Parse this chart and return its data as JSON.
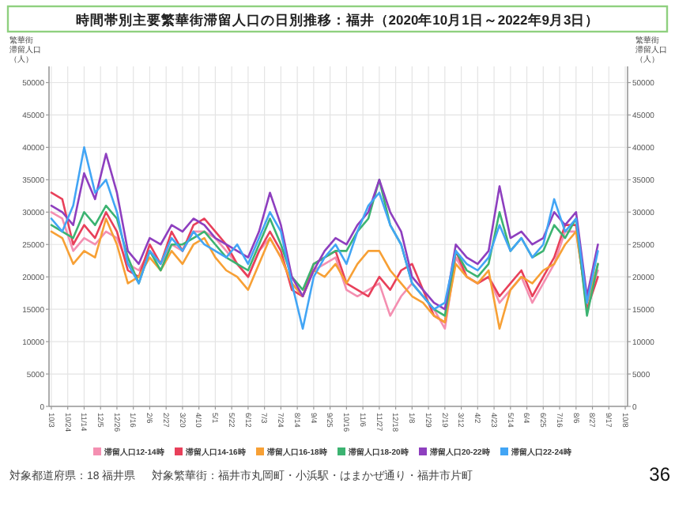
{
  "chart_data": {
    "type": "line",
    "title": "時間帯別主要繁華街滞留人口の日別推移：福井（2020年10月1日～2022年9月3日）",
    "ylabel": "繁華街滞留人口（人）",
    "y2label": "繁華街滞留人口（人）",
    "x": [
      "2020-10-03",
      "2020-10-17",
      "2020-10-31",
      "2020-11-14",
      "2020-11-28",
      "2020-12-12",
      "2020-12-26",
      "2021-01-09",
      "2021-01-23",
      "2021-02-06",
      "2021-02-20",
      "2021-03-06",
      "2021-03-20",
      "2021-04-03",
      "2021-04-17",
      "2021-05-01",
      "2021-05-15",
      "2021-05-29",
      "2021-06-12",
      "2021-06-26",
      "2021-07-10",
      "2021-07-24",
      "2021-08-07",
      "2021-08-21",
      "2021-09-04",
      "2021-09-18",
      "2021-10-02",
      "2021-10-16",
      "2021-10-30",
      "2021-11-13",
      "2021-11-27",
      "2021-12-11",
      "2021-12-25",
      "2022-01-08",
      "2022-01-22",
      "2022-02-05",
      "2022-02-19",
      "2022-03-05",
      "2022-03-19",
      "2022-04-02",
      "2022-04-16",
      "2022-04-30",
      "2022-05-14",
      "2022-05-28",
      "2022-06-11",
      "2022-06-25",
      "2022-07-09",
      "2022-07-23",
      "2022-08-06",
      "2022-08-20",
      "2022-09-03"
    ],
    "series": [
      {
        "name": "滞留人口12-14時",
        "color": "#f48fb1",
        "values": [
          30000,
          29000,
          24000,
          26000,
          25000,
          27000,
          26000,
          22000,
          21000,
          24000,
          22000,
          25000,
          24000,
          27000,
          27000,
          26000,
          24000,
          22000,
          20000,
          24000,
          26000,
          23000,
          19000,
          17000,
          21000,
          22000,
          23000,
          18000,
          17000,
          18000,
          19000,
          14000,
          17000,
          19000,
          17000,
          15000,
          12000,
          23000,
          20000,
          19000,
          20000,
          16000,
          18000,
          20000,
          16000,
          19000,
          22000,
          27000,
          27000,
          16000,
          21000
        ]
      },
      {
        "name": "滞留人口14-16時",
        "color": "#e8405a",
        "values": [
          33000,
          32000,
          25000,
          28000,
          26000,
          30000,
          27000,
          21000,
          20000,
          25000,
          22000,
          27000,
          24000,
          28000,
          29000,
          27000,
          25000,
          22000,
          20000,
          24000,
          27000,
          24000,
          18000,
          17000,
          22000,
          23000,
          24000,
          19000,
          18000,
          17000,
          20000,
          18000,
          21000,
          22000,
          18000,
          14000,
          13000,
          24000,
          20000,
          19000,
          20000,
          17000,
          19000,
          21000,
          17000,
          20000,
          23000,
          28000,
          28000,
          15000,
          20000
        ]
      },
      {
        "name": "滞留人口16-18時",
        "color": "#f7a035",
        "values": [
          27000,
          26000,
          22000,
          24000,
          23000,
          29000,
          25000,
          19000,
          20000,
          23000,
          21000,
          24000,
          22000,
          25000,
          26000,
          23000,
          21000,
          20000,
          18000,
          22000,
          26000,
          23000,
          19000,
          17000,
          21000,
          20000,
          22000,
          19000,
          22000,
          24000,
          24000,
          21000,
          19000,
          17000,
          16000,
          14000,
          13000,
          22000,
          20000,
          19000,
          21000,
          12000,
          18000,
          20000,
          19000,
          21000,
          22000,
          25000,
          27000,
          16000,
          22000
        ]
      },
      {
        "name": "滞留人口18-20時",
        "color": "#3cb371",
        "values": [
          28000,
          27000,
          26000,
          30000,
          28000,
          31000,
          29000,
          23000,
          19000,
          24000,
          21000,
          25000,
          25000,
          26000,
          27000,
          25000,
          23000,
          22000,
          21000,
          25000,
          29000,
          25000,
          20000,
          18000,
          22000,
          23000,
          24000,
          24000,
          27000,
          29000,
          35000,
          28000,
          25000,
          19000,
          17000,
          15000,
          14000,
          24000,
          21000,
          20000,
          22000,
          30000,
          24000,
          26000,
          23000,
          24000,
          28000,
          26000,
          29000,
          14000,
          22000
        ]
      },
      {
        "name": "滞留人口20-22時",
        "color": "#8e3fbf",
        "values": [
          31000,
          30000,
          28000,
          36000,
          32000,
          39000,
          33000,
          24000,
          22000,
          26000,
          25000,
          28000,
          27000,
          29000,
          28000,
          26000,
          25000,
          24000,
          23000,
          27000,
          33000,
          28000,
          20000,
          17000,
          21000,
          24000,
          26000,
          25000,
          28000,
          30000,
          35000,
          30000,
          27000,
          20000,
          18000,
          16000,
          15000,
          25000,
          23000,
          22000,
          24000,
          34000,
          26000,
          27000,
          25000,
          26000,
          30000,
          28000,
          30000,
          17000,
          25000
        ]
      },
      {
        "name": "滞留人口22-24時",
        "color": "#42a5f5",
        "values": [
          29000,
          27000,
          31000,
          40000,
          33000,
          35000,
          30000,
          22000,
          19000,
          24000,
          22000,
          26000,
          24000,
          27000,
          25000,
          24000,
          23000,
          25000,
          22000,
          26000,
          30000,
          27000,
          19000,
          12000,
          20000,
          23000,
          25000,
          22000,
          27000,
          31000,
          33000,
          28000,
          25000,
          19000,
          17000,
          15000,
          16000,
          24000,
          22000,
          21000,
          23000,
          28000,
          24000,
          26000,
          23000,
          25000,
          32000,
          27000,
          29000,
          16000,
          24000
        ]
      }
    ],
    "xlim": [
      "2020-09-30",
      "2022-10-11"
    ],
    "xticks": [
      {
        "value": "2020-10-03",
        "label": "10/3"
      },
      {
        "value": "2020-10-24",
        "label": "10/24"
      },
      {
        "value": "2020-11-14",
        "label": "11/14"
      },
      {
        "value": "2020-12-05",
        "label": "12/5"
      },
      {
        "value": "2020-12-26",
        "label": "12/26"
      },
      {
        "value": "2021-01-16",
        "label": "1/16"
      },
      {
        "value": "2021-02-06",
        "label": "2/6"
      },
      {
        "value": "2021-02-27",
        "label": "2/27"
      },
      {
        "value": "2021-03-20",
        "label": "3/20"
      },
      {
        "value": "2021-04-10",
        "label": "4/10"
      },
      {
        "value": "2021-05-01",
        "label": "5/1"
      },
      {
        "value": "2021-05-22",
        "label": "5/22"
      },
      {
        "value": "2021-06-12",
        "label": "6/12"
      },
      {
        "value": "2021-07-03",
        "label": "7/3"
      },
      {
        "value": "2021-07-24",
        "label": "7/24"
      },
      {
        "value": "2021-08-14",
        "label": "8/14"
      },
      {
        "value": "2021-09-04",
        "label": "9/4"
      },
      {
        "value": "2021-09-25",
        "label": "9/25"
      },
      {
        "value": "2021-10-16",
        "label": "10/16"
      },
      {
        "value": "2021-11-06",
        "label": "11/6"
      },
      {
        "value": "2021-11-27",
        "label": "11/27"
      },
      {
        "value": "2021-12-18",
        "label": "12/18"
      },
      {
        "value": "2022-01-08",
        "label": "1/8"
      },
      {
        "value": "2022-01-29",
        "label": "1/29"
      },
      {
        "value": "2022-02-19",
        "label": "2/19"
      },
      {
        "value": "2022-03-12",
        "label": "3/12"
      },
      {
        "value": "2022-04-02",
        "label": "4/2"
      },
      {
        "value": "2022-04-23",
        "label": "4/23"
      },
      {
        "value": "2022-05-14",
        "label": "5/14"
      },
      {
        "value": "2022-06-04",
        "label": "6/4"
      },
      {
        "value": "2022-06-25",
        "label": "6/25"
      },
      {
        "value": "2022-07-16",
        "label": "7/16"
      },
      {
        "value": "2022-08-06",
        "label": "8/6"
      },
      {
        "value": "2022-08-27",
        "label": "8/27"
      },
      {
        "value": "2022-09-17",
        "label": "9/17"
      },
      {
        "value": "2022-10-08",
        "label": "10/8"
      }
    ],
    "ylim": [
      0,
      52500
    ],
    "yticks": [
      0,
      5000,
      10000,
      15000,
      20000,
      25000,
      30000,
      35000,
      40000,
      45000,
      50000
    ],
    "y2lim": [
      0,
      52500
    ],
    "y2ticks": [
      0,
      5000,
      10000,
      15000,
      20000,
      25000,
      30000,
      35000,
      40000,
      45000,
      50000
    ],
    "grid": true,
    "legend": "bottom",
    "annotations": [
      "対象都道府県：18 福井県",
      "対象繁華街：福井市丸岡町・小浜駅・はまかぜ通り・福井市片町",
      "36"
    ]
  }
}
